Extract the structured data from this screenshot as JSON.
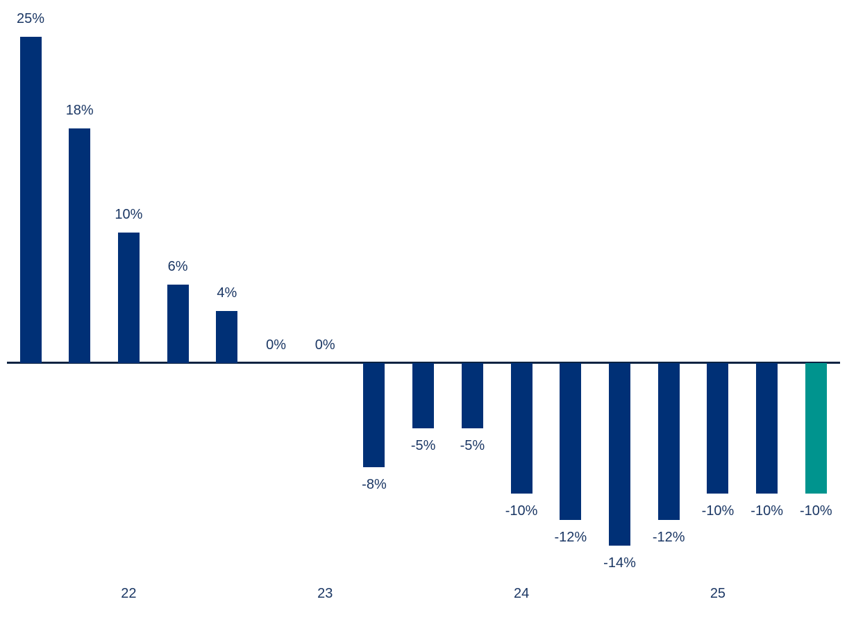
{
  "chart_data": {
    "type": "bar",
    "title": "",
    "unit": "%",
    "bars": [
      {
        "label": "25%",
        "value": 25,
        "color_key": "navy"
      },
      {
        "label": "18%",
        "value": 18,
        "color_key": "navy"
      },
      {
        "label": "10%",
        "value": 10,
        "color_key": "navy"
      },
      {
        "label": "6%",
        "value": 6,
        "color_key": "navy"
      },
      {
        "label": "4%",
        "value": 4,
        "color_key": "navy"
      },
      {
        "label": "0%",
        "value": 0,
        "color_key": "navy"
      },
      {
        "label": "0%",
        "value": 0,
        "color_key": "navy"
      },
      {
        "label": "-8%",
        "value": -8,
        "color_key": "navy"
      },
      {
        "label": "-5%",
        "value": -5,
        "color_key": "navy"
      },
      {
        "label": "-5%",
        "value": -5,
        "color_key": "navy"
      },
      {
        "label": "-10%",
        "value": -10,
        "color_key": "navy"
      },
      {
        "label": "-12%",
        "value": -12,
        "color_key": "navy"
      },
      {
        "label": "-14%",
        "value": -14,
        "color_key": "navy"
      },
      {
        "label": "-12%",
        "value": -12,
        "color_key": "navy"
      },
      {
        "label": "-10%",
        "value": -10,
        "color_key": "navy"
      },
      {
        "label": "-10%",
        "value": -10,
        "color_key": "navy"
      },
      {
        "label": "-10%",
        "value": -10,
        "color_key": "teal"
      }
    ],
    "x_axis": {
      "labels": [
        {
          "text": "22",
          "bar_index": 2
        },
        {
          "text": "23",
          "bar_index": 6
        },
        {
          "text": "24",
          "bar_index": 10
        },
        {
          "text": "25",
          "bar_index": 14
        }
      ]
    },
    "colors": {
      "navy": "#003076",
      "teal": "#00948E",
      "axis_line": "#0A2342",
      "label_text": "#1B3764"
    },
    "layout_hints": {
      "grid": false,
      "legend": false,
      "zero_line": true,
      "value_labels": "outside-end",
      "ylim": [
        -14,
        25
      ]
    }
  }
}
